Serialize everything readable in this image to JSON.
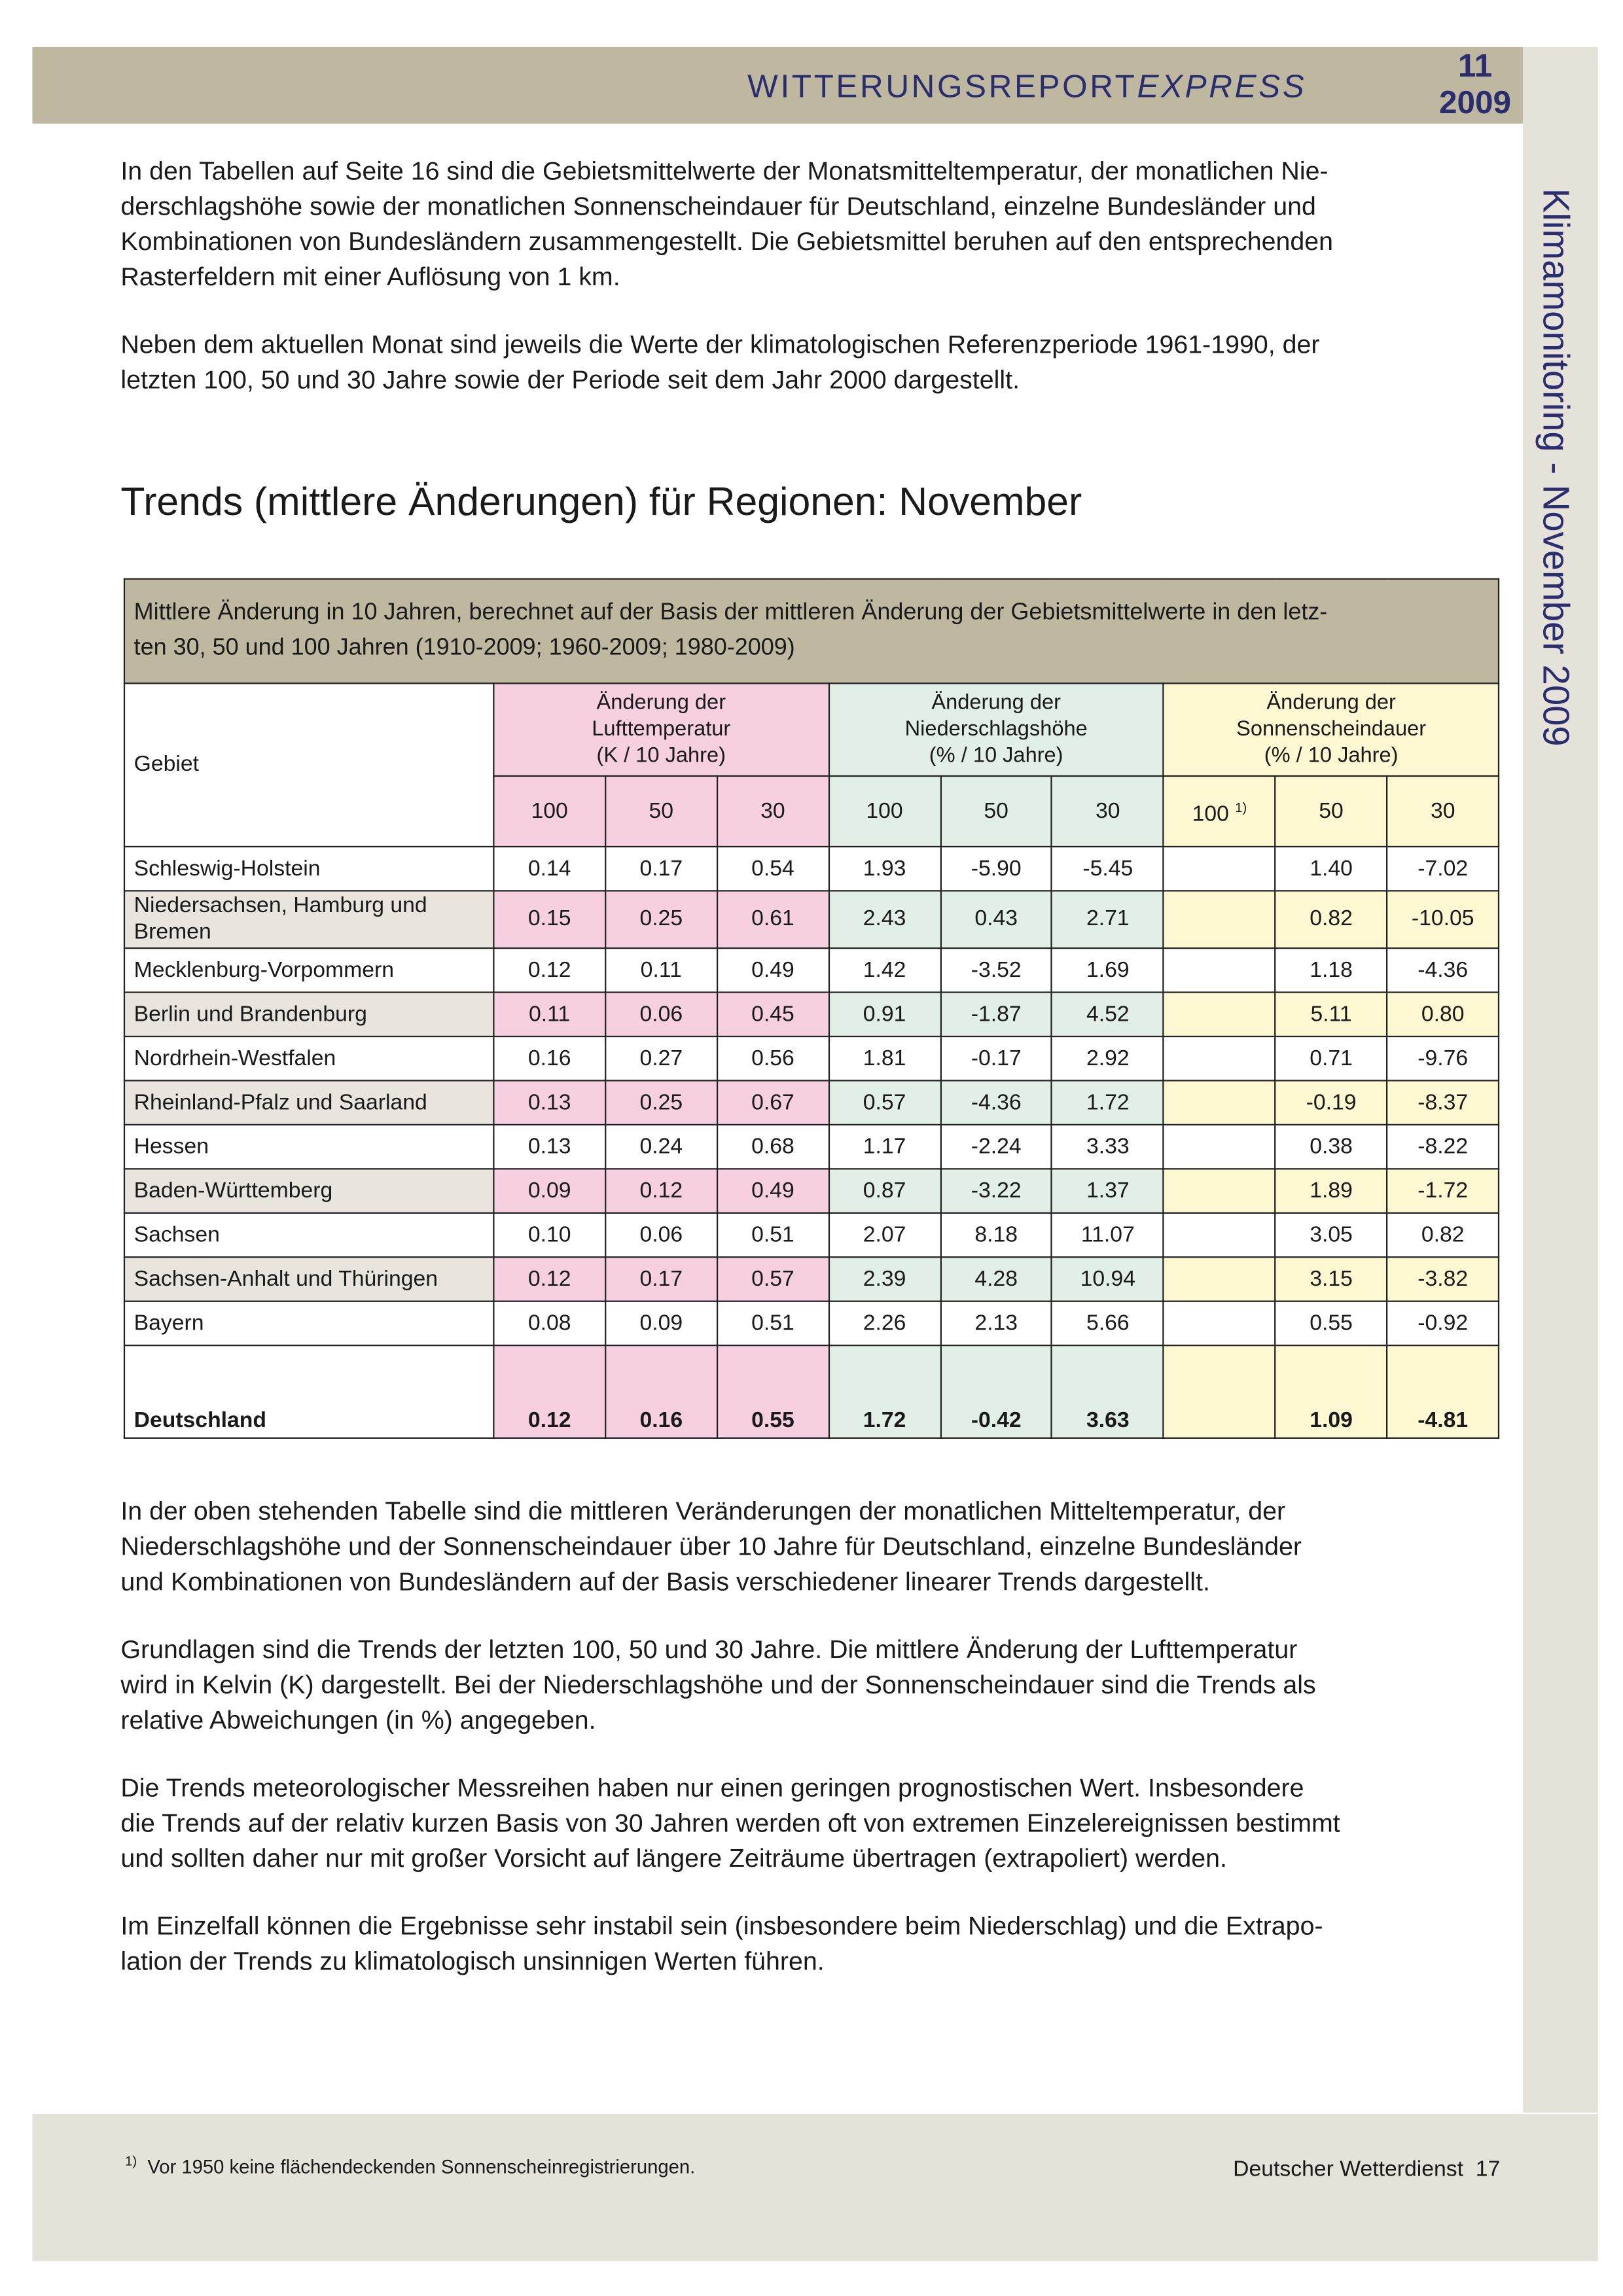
{
  "header": {
    "title": "WITTERUNGSREPORT",
    "title_suffix": "EXPRESS",
    "issue": "11",
    "year": "2009"
  },
  "sidebar": "Klimamonitoring - November 2009",
  "intro": [
    [
      "In den Tabellen auf Seite 16 sind die Gebietsmittelwerte der Monatsmitteltemperatur, der monatlichen Nie-",
      "derschlagshöhe sowie der monatlichen Sonnenscheindauer für Deutschland, einzelne Bundesländer und",
      "Kombinationen von Bundesländern zusammengestellt. Die Gebietsmittel beruhen auf den entsprechenden",
      "Rasterfeldern mit einer Auflösung von 1 km."
    ],
    [
      "Neben dem aktuellen Monat sind jeweils die Werte der klimatologischen Referenzperiode 1961-1990, der",
      "letzten 100, 50 und 30 Jahre sowie der Periode seit dem Jahr 2000 dargestellt."
    ]
  ],
  "heading": "Trends (mittlere Änderungen) für Regionen: November",
  "table": {
    "caption": [
      "Mittlere Änderung in 10 Jahren, berechnet auf der Basis der mittleren Änderung der Gebietsmittelwerte in den letz-",
      "ten 30, 50  und 100 Jahren (1910-2009; 1960-2009; 1980-2009)"
    ],
    "gebiet_header": "Gebiet",
    "groups": [
      [
        "Änderung der",
        "Lufttemperatur",
        "(K / 10 Jahre)"
      ],
      [
        "Änderung der",
        "Niederschlagshöhe",
        "(% / 10 Jahre)"
      ],
      [
        "Änderung der",
        "Sonnenscheindauer",
        "(% / 10 Jahre)"
      ]
    ],
    "subheaders": [
      "100",
      "50",
      "30",
      "100",
      "50",
      "30",
      "100",
      "50",
      "30"
    ],
    "sun_100_mark": "1)",
    "rows": [
      {
        "gebiet": "Schleswig-Holstein",
        "temp": [
          "0.14",
          "0.17",
          "0.54"
        ],
        "precip": [
          "1.93",
          "-5.90",
          "-5.45"
        ],
        "sun": [
          "1.40",
          "-7.02"
        ]
      },
      {
        "gebiet": "Niedersachsen, Hamburg und Bremen",
        "temp": [
          "0.15",
          "0.25",
          "0.61"
        ],
        "precip": [
          "2.43",
          "0.43",
          "2.71"
        ],
        "sun": [
          "0.82",
          "-10.05"
        ]
      },
      {
        "gebiet": "Mecklenburg-Vorpommern",
        "temp": [
          "0.12",
          "0.11",
          "0.49"
        ],
        "precip": [
          "1.42",
          "-3.52",
          "1.69"
        ],
        "sun": [
          "1.18",
          "-4.36"
        ]
      },
      {
        "gebiet": "Berlin und Brandenburg",
        "temp": [
          "0.11",
          "0.06",
          "0.45"
        ],
        "precip": [
          "0.91",
          "-1.87",
          "4.52"
        ],
        "sun": [
          "5.11",
          "0.80"
        ]
      },
      {
        "gebiet": "Nordrhein-Westfalen",
        "temp": [
          "0.16",
          "0.27",
          "0.56"
        ],
        "precip": [
          "1.81",
          "-0.17",
          "2.92"
        ],
        "sun": [
          "0.71",
          "-9.76"
        ]
      },
      {
        "gebiet": "Rheinland-Pfalz und Saarland",
        "temp": [
          "0.13",
          "0.25",
          "0.67"
        ],
        "precip": [
          "0.57",
          "-4.36",
          "1.72"
        ],
        "sun": [
          "-0.19",
          "-8.37"
        ]
      },
      {
        "gebiet": "Hessen",
        "temp": [
          "0.13",
          "0.24",
          "0.68"
        ],
        "precip": [
          "1.17",
          "-2.24",
          "3.33"
        ],
        "sun": [
          "0.38",
          "-8.22"
        ]
      },
      {
        "gebiet": "Baden-Württemberg",
        "temp": [
          "0.09",
          "0.12",
          "0.49"
        ],
        "precip": [
          "0.87",
          "-3.22",
          "1.37"
        ],
        "sun": [
          "1.89",
          "-1.72"
        ]
      },
      {
        "gebiet": "Sachsen",
        "temp": [
          "0.10",
          "0.06",
          "0.51"
        ],
        "precip": [
          "2.07",
          "8.18",
          "11.07"
        ],
        "sun": [
          "3.05",
          "0.82"
        ]
      },
      {
        "gebiet": "Sachsen-Anhalt und Thüringen",
        "temp": [
          "0.12",
          "0.17",
          "0.57"
        ],
        "precip": [
          "2.39",
          "4.28",
          "10.94"
        ],
        "sun": [
          "3.15",
          "-3.82"
        ]
      },
      {
        "gebiet": "Bayern",
        "temp": [
          "0.08",
          "0.09",
          "0.51"
        ],
        "precip": [
          "2.26",
          "2.13",
          "5.66"
        ],
        "sun": [
          "0.55",
          "-0.92"
        ]
      },
      {
        "gebiet": "Deutschland",
        "temp": [
          "0.12",
          "0.16",
          "0.55"
        ],
        "precip": [
          "1.72",
          "-0.42",
          "3.63"
        ],
        "sun": [
          "1.09",
          "-4.81"
        ]
      }
    ]
  },
  "paragraphs": [
    [
      "In der oben stehenden Tabelle sind die mittleren Veränderungen der monatlichen Mitteltemperatur, der",
      "Niederschlagshöhe und der Sonnenscheindauer über 10 Jahre für Deutschland, einzelne Bundesländer",
      "und Kombinationen von Bundesländern auf der Basis verschiedener linearer Trends dargestellt."
    ],
    [
      "Grundlagen sind die Trends der letzten 100, 50 und 30 Jahre. Die mittlere Änderung der Lufttemperatur",
      "wird in Kelvin (K) dargestellt. Bei der Niederschlagshöhe und der Sonnenscheindauer sind die Trends als",
      "relative Abweichungen (in %) angegeben."
    ],
    [
      "Die Trends meteorologischer Messreihen haben nur einen geringen prognostischen Wert. Insbesondere",
      "die Trends auf der relativ kurzen Basis von 30 Jahren werden oft von extremen Einzelereignissen bestimmt",
      "und sollten daher nur mit großer Vorsicht auf längere Zeiträume übertragen (extrapoliert) werden."
    ],
    [
      "Im Einzelfall können die Ergebnisse sehr instabil sein (insbesondere beim Niederschlag) und die Extrapo-",
      "lation der Trends zu klimatologisch unsinnigen Werten führen."
    ]
  ],
  "footnote": {
    "mark": "1)",
    "text": "Vor 1950 keine flächendeckenden Sonnenscheinregistrierungen."
  },
  "footer": {
    "publisher": "Deutscher Wetterdienst",
    "page": "17"
  }
}
